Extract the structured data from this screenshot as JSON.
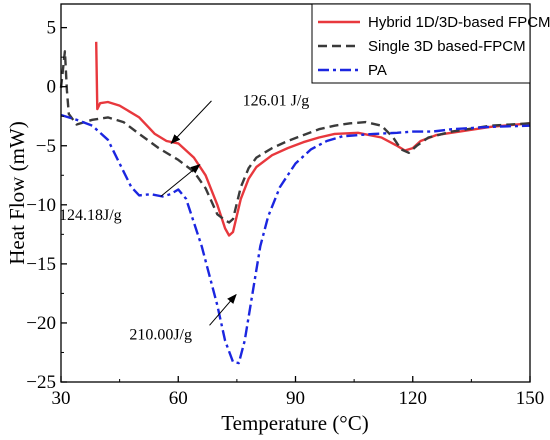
{
  "chart_data": {
    "type": "line",
    "xlabel": "Temperature (°C)",
    "ylabel": "Heat Flow (mW)",
    "xlim": [
      30,
      150
    ],
    "ylim": [
      -25,
      7
    ],
    "xticks": [
      30,
      60,
      90,
      120,
      150
    ],
    "yticks": [
      5,
      0,
      -5,
      -10,
      -15,
      -20,
      -25
    ],
    "xtick_labels": [
      "30",
      "60",
      "90",
      "120",
      "150"
    ],
    "ytick_labels": [
      "5",
      "0",
      "−5",
      "−10",
      "−15",
      "−20",
      "−25"
    ],
    "legend_position": "top-right",
    "series": [
      {
        "name": "Hybrid 1D/3D-based FPCM",
        "color": "#e8383d",
        "dash": "solid",
        "points": [
          [
            39,
            3.8
          ],
          [
            39.3,
            -1.9
          ],
          [
            40,
            -1.4
          ],
          [
            42,
            -1.3
          ],
          [
            45,
            -1.6
          ],
          [
            50,
            -2.6
          ],
          [
            54,
            -4.0
          ],
          [
            57,
            -4.6
          ],
          [
            60,
            -4.8
          ],
          [
            64,
            -6.0
          ],
          [
            67,
            -7.5
          ],
          [
            70,
            -10.0
          ],
          [
            72,
            -12.0
          ],
          [
            73,
            -12.6
          ],
          [
            74,
            -12.3
          ],
          [
            76,
            -9.5
          ],
          [
            78,
            -7.8
          ],
          [
            80,
            -6.8
          ],
          [
            84,
            -5.8
          ],
          [
            88,
            -5.2
          ],
          [
            92,
            -4.7
          ],
          [
            96,
            -4.3
          ],
          [
            100,
            -4.0
          ],
          [
            106,
            -3.9
          ],
          [
            112,
            -4.3
          ],
          [
            116,
            -5.0
          ],
          [
            118,
            -5.4
          ],
          [
            120,
            -5.2
          ],
          [
            122,
            -4.6
          ],
          [
            126,
            -4.1
          ],
          [
            132,
            -3.8
          ],
          [
            140,
            -3.4
          ],
          [
            150,
            -3.1
          ]
        ]
      },
      {
        "name": "Single 3D based-FPCM",
        "color": "#3a3a3a",
        "dash": "dashed",
        "points": [
          [
            30,
            -0.1
          ],
          [
            31,
            3.0
          ],
          [
            31.5,
            -0.3
          ],
          [
            32,
            -2.3
          ],
          [
            34,
            -3.2
          ],
          [
            38,
            -2.8
          ],
          [
            42,
            -2.6
          ],
          [
            46,
            -3.0
          ],
          [
            50,
            -4.0
          ],
          [
            55,
            -5.2
          ],
          [
            60,
            -6.2
          ],
          [
            64,
            -7.2
          ],
          [
            67,
            -8.6
          ],
          [
            70,
            -10.8
          ],
          [
            72,
            -11.3
          ],
          [
            73,
            -11.5
          ],
          [
            74,
            -11.2
          ],
          [
            76,
            -8.5
          ],
          [
            78,
            -6.9
          ],
          [
            80,
            -6.0
          ],
          [
            84,
            -5.2
          ],
          [
            88,
            -4.6
          ],
          [
            92,
            -4.1
          ],
          [
            96,
            -3.6
          ],
          [
            100,
            -3.3
          ],
          [
            104,
            -3.1
          ],
          [
            108,
            -3.0
          ],
          [
            112,
            -3.3
          ],
          [
            115,
            -4.3
          ],
          [
            117,
            -5.3
          ],
          [
            119,
            -5.6
          ],
          [
            121,
            -5.0
          ],
          [
            124,
            -4.3
          ],
          [
            130,
            -3.8
          ],
          [
            140,
            -3.3
          ],
          [
            150,
            -3.1
          ]
        ]
      },
      {
        "name": "PA",
        "color": "#1b26e0",
        "dash": "dashdot",
        "points": [
          [
            30,
            -2.4
          ],
          [
            34,
            -2.8
          ],
          [
            38,
            -3.3
          ],
          [
            42,
            -4.5
          ],
          [
            45,
            -6.5
          ],
          [
            48,
            -8.5
          ],
          [
            50,
            -9.2
          ],
          [
            53,
            -9.1
          ],
          [
            56,
            -9.3
          ],
          [
            58,
            -9.1
          ],
          [
            60,
            -8.7
          ],
          [
            62,
            -9.5
          ],
          [
            64,
            -11.5
          ],
          [
            66,
            -13.5
          ],
          [
            68,
            -16.0
          ],
          [
            70,
            -18.5
          ],
          [
            72,
            -21.5
          ],
          [
            74,
            -23.3
          ],
          [
            75.5,
            -23.4
          ],
          [
            77,
            -21.5
          ],
          [
            79,
            -17.5
          ],
          [
            81,
            -13.5
          ],
          [
            83,
            -11.0
          ],
          [
            86,
            -8.5
          ],
          [
            90,
            -6.5
          ],
          [
            94,
            -5.3
          ],
          [
            98,
            -4.6
          ],
          [
            102,
            -4.2
          ],
          [
            106,
            -4.1
          ],
          [
            110,
            -4.0
          ],
          [
            116,
            -3.9
          ],
          [
            120,
            -3.8
          ],
          [
            125,
            -3.8
          ],
          [
            130,
            -3.6
          ],
          [
            140,
            -3.4
          ],
          [
            150,
            -3.3
          ]
        ]
      }
    ],
    "annotations": [
      {
        "text": "126.01 J/g",
        "arrow_from": [
          68.5,
          -1.2
        ],
        "arrow_to": [
          58.2,
          -4.8
        ],
        "text_pos": [
          85,
          -1.6
        ]
      },
      {
        "text": "124.18J/g",
        "arrow_from": [
          55.5,
          -9.3
        ],
        "arrow_to": [
          65.5,
          -6.6
        ],
        "text_pos": [
          37.5,
          -11.3
        ]
      },
      {
        "text": "210.00J/g",
        "arrow_from": [
          68.0,
          -20.2
        ],
        "arrow_to": [
          74.8,
          -17.6
        ],
        "text_pos": [
          55.5,
          -21.4
        ]
      }
    ]
  }
}
